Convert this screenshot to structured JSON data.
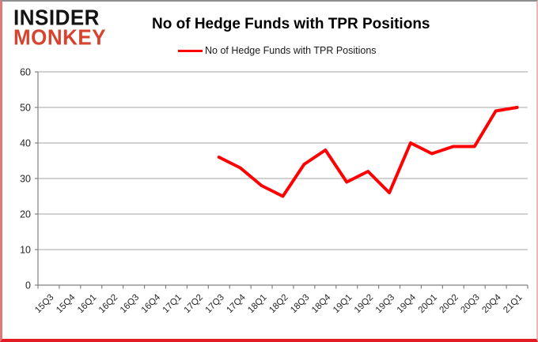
{
  "logo": {
    "line1": "INSIDER",
    "line2": "MONKEY"
  },
  "header": {
    "title": "No of Hedge Funds with TPR Positions"
  },
  "legend": {
    "label": "No of Hedge Funds with TPR Positions"
  },
  "colors": {
    "series_red": "#ff0000",
    "logo_red": "#d6432e",
    "gridline_gray": "#a6a6a6",
    "axis_gray": "#808080",
    "tick_label": "#262626"
  },
  "chart_data": {
    "type": "line",
    "title": "No of Hedge Funds with TPR Positions",
    "categories": [
      "15Q3",
      "15Q4",
      "16Q1",
      "16Q2",
      "16Q3",
      "16Q4",
      "17Q1",
      "17Q2",
      "17Q3",
      "17Q4",
      "18Q1",
      "18Q2",
      "18Q3",
      "18Q4",
      "19Q1",
      "19Q2",
      "19Q3",
      "19Q4",
      "20Q1",
      "20Q2",
      "20Q3",
      "20Q4",
      "21Q1"
    ],
    "series": [
      {
        "name": "No of Hedge Funds with TPR Positions",
        "color": "#ff0000",
        "values": [
          null,
          null,
          null,
          null,
          null,
          null,
          null,
          null,
          36,
          33,
          28,
          25,
          34,
          38,
          29,
          32,
          26,
          40,
          37,
          39,
          39,
          49,
          50
        ]
      }
    ],
    "ylabel": "",
    "xlabel": "",
    "ylim": [
      0,
      60
    ],
    "ytick_step": 10,
    "grid": true,
    "legend_position": "top"
  }
}
